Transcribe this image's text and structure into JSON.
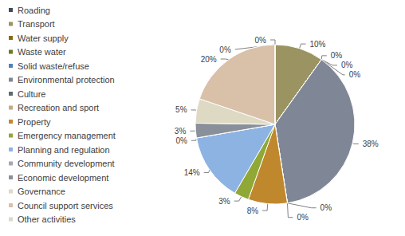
{
  "chart_data": {
    "type": "pie",
    "categories": [
      "Roading",
      "Transport",
      "Water supply",
      "Waste water",
      "Solid waste/refuse",
      "Environmental protection",
      "Culture",
      "Recreation and sport",
      "Property",
      "Emergency management",
      "Planning and regulation",
      "Community development",
      "Economic development",
      "Governance",
      "Council support services",
      "Other activities"
    ],
    "values": [
      0,
      10,
      0,
      0,
      0,
      38,
      0,
      0,
      8,
      3,
      14,
      0,
      3,
      5,
      20,
      0
    ],
    "value_labels": [
      "0%",
      "10%",
      "0%",
      "0%",
      "0%",
      "38%",
      "0%",
      "0%",
      "8%",
      "3%",
      "14%",
      "0%",
      "3%",
      "5%",
      "20%",
      "0%"
    ],
    "colors": [
      "#3f4a5c",
      "#9b9462",
      "#8b6914",
      "#6b7a1f",
      "#4f81bd",
      "#7f8796",
      "#5c6b6b",
      "#c8a882",
      "#c0882d",
      "#8fa836",
      "#8db3e2",
      "#a6a6b5",
      "#8a9099",
      "#ddd9c3",
      "#d9c0a8",
      "#d7dbc8"
    ],
    "data_labels": true,
    "legend": "left"
  }
}
